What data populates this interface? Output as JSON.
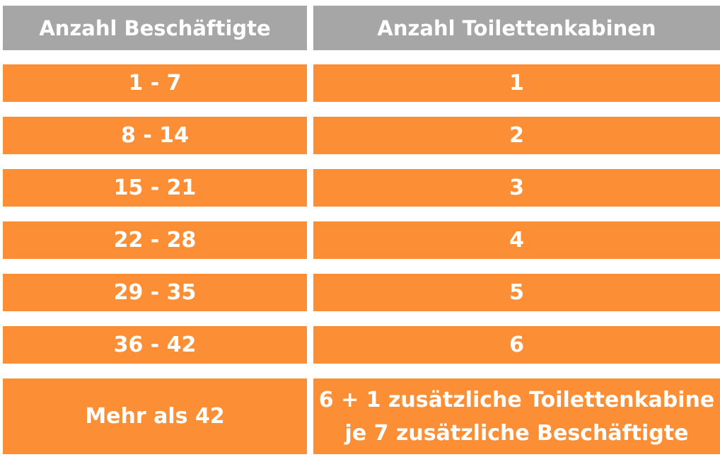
{
  "header": {
    "col1": "Anzahl Beschäftigte",
    "col2": "Anzahl Toilettenkabinen"
  },
  "rows": [
    {
      "employees": "1 - 7",
      "cabins": "1"
    },
    {
      "employees": "8 - 14",
      "cabins": "2"
    },
    {
      "employees": "15 - 21",
      "cabins": "3"
    },
    {
      "employees": "22 - 28",
      "cabins": "4"
    },
    {
      "employees": "29 - 35",
      "cabins": "5"
    },
    {
      "employees": "36 - 42",
      "cabins": "6"
    }
  ],
  "last_row": {
    "employees": "Mehr als 42",
    "cabins_line1": "6 + 1 zusätzliche Toilettenkabine",
    "cabins_line2": "je 7 zusätzliche Beschäftigte"
  },
  "colors": {
    "header_bg": "#a6a6a6",
    "row_bg": "#fc8f35",
    "text": "#ffffff"
  }
}
